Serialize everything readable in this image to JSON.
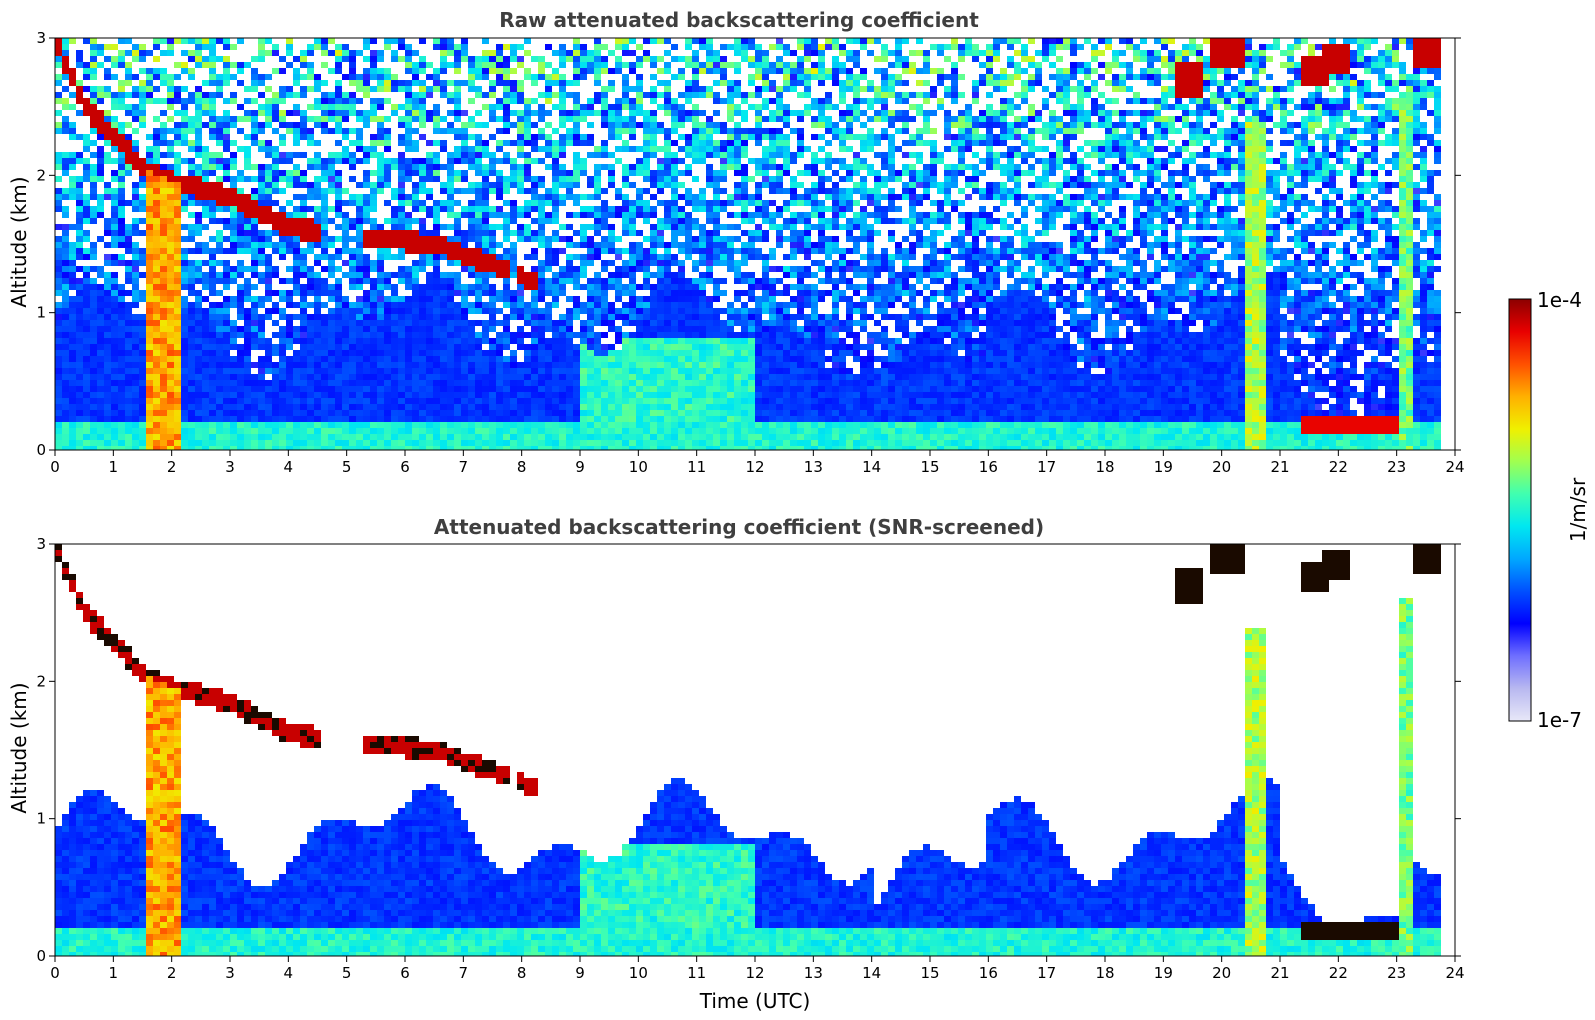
{
  "chart_data": [
    {
      "type": "heatmap",
      "title": "Raw attenuated backscattering coefficient",
      "xlabel": "",
      "ylabel": "Altitude (km)",
      "xlim": [
        0,
        24
      ],
      "ylim": [
        0,
        3
      ],
      "xticks": [
        "0",
        "1",
        "2",
        "3",
        "4",
        "5",
        "6",
        "7",
        "8",
        "9",
        "10",
        "11",
        "12",
        "13",
        "14",
        "15",
        "16",
        "17",
        "18",
        "19",
        "20",
        "21",
        "22",
        "23",
        "24"
      ],
      "yticks": [
        "0",
        "1",
        "2",
        "3"
      ],
      "screened": false
    },
    {
      "type": "heatmap",
      "title": "Attenuated backscattering coefficient (SNR-screened)",
      "xlabel": "Time (UTC)",
      "ylabel": "Altitude (km)",
      "xlim": [
        0,
        24
      ],
      "ylim": [
        0,
        3
      ],
      "xticks": [
        "0",
        "1",
        "2",
        "3",
        "4",
        "5",
        "6",
        "7",
        "8",
        "9",
        "10",
        "11",
        "12",
        "13",
        "14",
        "15",
        "16",
        "17",
        "18",
        "19",
        "20",
        "21",
        "22",
        "23",
        "24"
      ],
      "yticks": [
        "0",
        "1",
        "2",
        "3"
      ],
      "screened": true
    }
  ],
  "colorbar": {
    "label": "1/m/sr",
    "max_label": "1e-4",
    "min_label": "1e-7",
    "scale": "log",
    "colors": [
      "#e8e8f8",
      "#b8b8f0",
      "#6f6fff",
      "#0000ff",
      "#0050ff",
      "#00a8ff",
      "#00e8f0",
      "#40ffb0",
      "#a0ff50",
      "#f0f000",
      "#ffb000",
      "#ff5000",
      "#e80000",
      "#8c0000"
    ]
  },
  "features": {
    "cloud_layer": [
      [
        0,
        3.0
      ],
      [
        0.5,
        2.5
      ],
      [
        1,
        2.3
      ],
      [
        1.5,
        2.05
      ],
      [
        2,
        1.95
      ],
      [
        3,
        1.85
      ],
      [
        4,
        1.62
      ],
      [
        5.3,
        1.55
      ],
      [
        6.5,
        1.5
      ],
      [
        7.5,
        1.35
      ],
      [
        8.3,
        1.2
      ]
    ],
    "cloud_segments_hours": [
      [
        0,
        4.5
      ],
      [
        5.3,
        7.8
      ],
      [
        7.9,
        8.4
      ]
    ],
    "precip_column_hours": [
      1.6,
      2.1
    ],
    "right_clouds": [
      [
        19.4,
        2.7
      ],
      [
        20.1,
        2.9
      ],
      [
        21.6,
        2.75
      ],
      [
        22.0,
        2.85
      ],
      [
        23.5,
        2.9
      ]
    ],
    "low_cloud_hours": [
      21.3,
      23.0
    ],
    "low_cloud_alt": 0.17
  }
}
